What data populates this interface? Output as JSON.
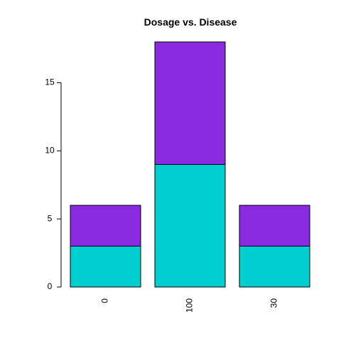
{
  "chart_data": {
    "type": "bar",
    "stacked": true,
    "title": "Dosage vs. Disease",
    "xlabel": "",
    "ylabel": "",
    "categories": [
      "0",
      "100",
      "30"
    ],
    "series": [
      {
        "values": [
          3,
          9,
          3
        ],
        "color": "#00CED1"
      },
      {
        "values": [
          3,
          9,
          3
        ],
        "color": "#8A2BE2"
      }
    ],
    "ylim": [
      0,
      18
    ],
    "yticks": [
      0,
      5,
      10,
      15
    ],
    "grid": false,
    "legend": "none"
  }
}
